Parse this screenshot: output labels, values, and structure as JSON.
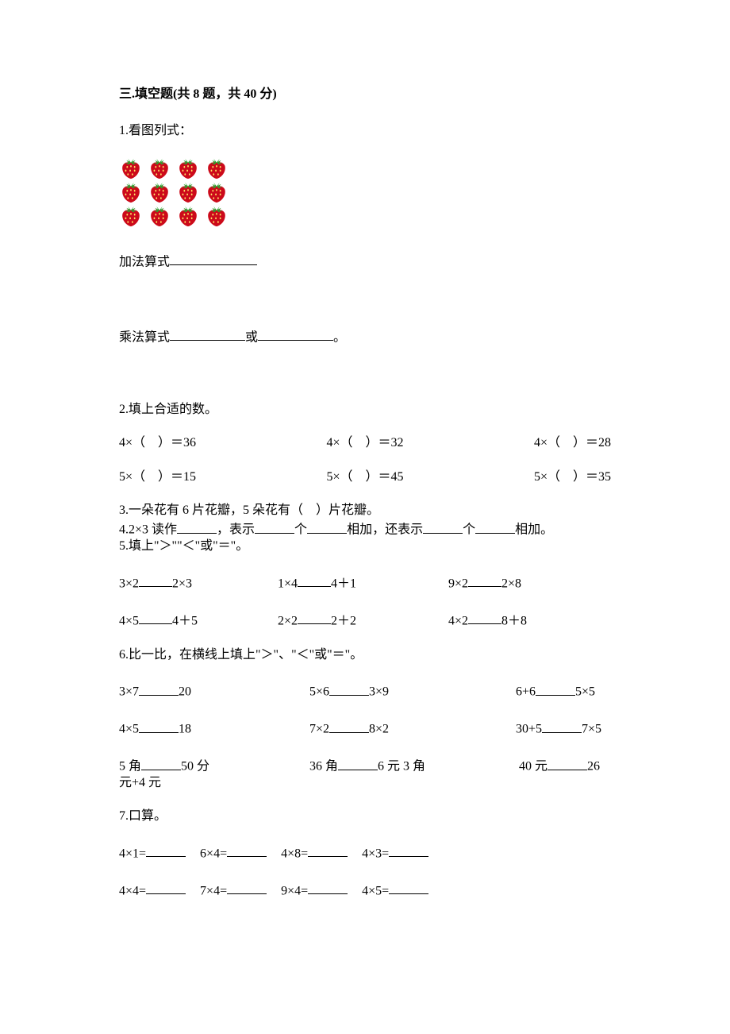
{
  "section": {
    "title": "三.填空题(共 8 题，共 40 分)"
  },
  "q1": {
    "prompt": "1.看图列式：",
    "strawberry": {
      "rows": 3,
      "cols": 4,
      "body_color": "#cc0a1a",
      "leaf_color": "#2f9e2f",
      "seed_color": "#ffe066"
    },
    "addition_label": "加法算式",
    "mult_label": "乘法算式",
    "or_label": "或",
    "period": "。"
  },
  "q2": {
    "prompt": "2.填上合适的数。",
    "rows": [
      [
        {
          "lhs": "4×（",
          "rhs": "）＝36"
        },
        {
          "lhs": "4×（",
          "rhs": "）＝32"
        },
        {
          "lhs": "4×（",
          "rhs": "）＝28"
        }
      ],
      [
        {
          "lhs": "5×（",
          "rhs": "）＝15"
        },
        {
          "lhs": "5×（",
          "rhs": "）＝45"
        },
        {
          "lhs": "5×（",
          "rhs": "）＝35"
        }
      ]
    ]
  },
  "q3": {
    "text_a": "3.一朵花有 6 片花瓣，5 朵花有（",
    "text_b": "）片花瓣。"
  },
  "q4": {
    "p1": "4.2×3 读作",
    "p2": "，表示",
    "p3": "个",
    "p4": "相加，还表示",
    "p5": "个",
    "p6": "相加。"
  },
  "q5": {
    "prompt": "5.填上\"＞\"\"＜\"或\"＝\"。",
    "rows": [
      [
        {
          "l": "3×2",
          "r": "2×3"
        },
        {
          "l": "1×4",
          "r": "4＋1"
        },
        {
          "l": "9×2",
          "r": "2×8"
        }
      ],
      [
        {
          "l": "4×5",
          "r": "4＋5"
        },
        {
          "l": "2×2",
          "r": "2＋2"
        },
        {
          "l": "4×2",
          "r": "8＋8"
        }
      ]
    ]
  },
  "q6": {
    "prompt": "6.比一比，在横线上填上\"＞\"、\"＜\"或\"＝\"。",
    "rows": [
      [
        {
          "l": "3×7",
          "r": "20"
        },
        {
          "l": "5×6",
          "r": "3×9"
        },
        {
          "l": "6+6",
          "r": "5×5"
        }
      ],
      [
        {
          "l": "4×5",
          "r": "18"
        },
        {
          "l": "7×2",
          "r": "8×2"
        },
        {
          "l": "30+5",
          "r": "7×5"
        }
      ],
      [
        {
          "l": "5 角",
          "r": "50 分"
        },
        {
          "l": "36 角",
          "r": "6 元 3 角"
        },
        {
          "l": "40 元",
          "r": "26"
        }
      ]
    ],
    "wrap_tail": "元+4 元"
  },
  "q7": {
    "prompt": "7.口算。",
    "rows": [
      [
        "4×1=",
        "6×4=",
        "4×8=",
        "4×3="
      ],
      [
        "4×4=",
        "7×4=",
        "9×4=",
        "4×5="
      ]
    ]
  }
}
